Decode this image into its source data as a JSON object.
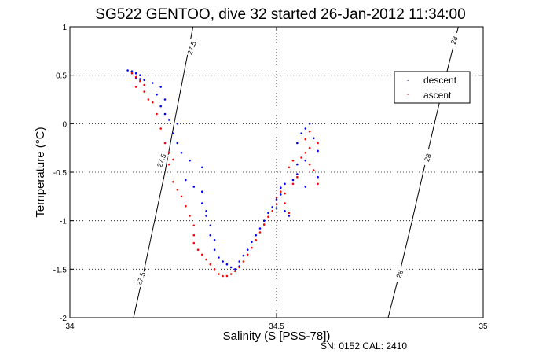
{
  "chart_data": {
    "type": "scatter",
    "title": "SG522 GENTOO, dive 32 started 26-Jan-2012 11:34:00",
    "xlabel": "Salinity (S [PSS-78])",
    "ylabel": "Temperature (°C)",
    "xlim": [
      34,
      35
    ],
    "ylim": [
      -2,
      1
    ],
    "xticks": [
      34,
      34.5,
      35
    ],
    "xtick_labels": [
      "34",
      "34.5",
      "35"
    ],
    "yticks": [
      -2,
      -1.5,
      -1,
      -0.5,
      0,
      0.5,
      1
    ],
    "ytick_labels": [
      "-2",
      "-1.5",
      "-1",
      "-0.5",
      "0",
      "0.5",
      "1"
    ],
    "grid": true,
    "legend_position": "top-right",
    "series": [
      {
        "name": "descent",
        "color": "#0000ff",
        "points": [
          [
            34.14,
            0.55
          ],
          [
            34.15,
            0.54
          ],
          [
            34.16,
            0.52
          ],
          [
            34.17,
            0.5
          ],
          [
            34.16,
            0.47
          ],
          [
            34.17,
            0.46
          ],
          [
            34.18,
            0.45
          ],
          [
            34.2,
            0.42
          ],
          [
            34.22,
            0.38
          ],
          [
            34.21,
            0.3
          ],
          [
            34.23,
            0.25
          ],
          [
            34.22,
            0.18
          ],
          [
            34.23,
            0.1
          ],
          [
            34.24,
            0.04
          ],
          [
            34.26,
            0.0
          ],
          [
            34.25,
            -0.1
          ],
          [
            34.26,
            -0.2
          ],
          [
            34.27,
            -0.3
          ],
          [
            34.29,
            -0.38
          ],
          [
            34.32,
            -0.45
          ],
          [
            34.28,
            -0.58
          ],
          [
            34.3,
            -0.65
          ],
          [
            34.32,
            -0.7
          ],
          [
            34.32,
            -0.82
          ],
          [
            34.33,
            -0.9
          ],
          [
            34.33,
            -0.95
          ],
          [
            34.34,
            -1.05
          ],
          [
            34.34,
            -1.15
          ],
          [
            34.35,
            -1.2
          ],
          [
            34.35,
            -1.3
          ],
          [
            34.36,
            -1.38
          ],
          [
            34.37,
            -1.42
          ],
          [
            34.38,
            -1.45
          ],
          [
            34.39,
            -1.48
          ],
          [
            34.4,
            -1.5
          ],
          [
            34.41,
            -1.47
          ],
          [
            34.41,
            -1.42
          ],
          [
            34.42,
            -1.36
          ],
          [
            34.43,
            -1.3
          ],
          [
            34.44,
            -1.22
          ],
          [
            34.45,
            -1.15
          ],
          [
            34.46,
            -1.08
          ],
          [
            34.47,
            -1.0
          ],
          [
            34.48,
            -0.92
          ],
          [
            34.49,
            -0.86
          ],
          [
            34.5,
            -0.78
          ],
          [
            34.51,
            -0.73
          ],
          [
            34.51,
            -0.66
          ],
          [
            34.52,
            -0.62
          ],
          [
            34.5,
            -0.87
          ],
          [
            34.52,
            -0.9
          ],
          [
            34.53,
            -0.95
          ],
          [
            34.54,
            -0.58
          ],
          [
            34.55,
            -0.52
          ],
          [
            34.55,
            -0.42
          ],
          [
            34.57,
            -0.38
          ],
          [
            34.55,
            -0.2
          ],
          [
            34.56,
            -0.1
          ],
          [
            34.57,
            -0.05
          ],
          [
            34.58,
            0.0
          ],
          [
            34.59,
            -0.15
          ],
          [
            34.6,
            -0.28
          ],
          [
            34.57,
            -0.65
          ],
          [
            34.6,
            -0.55
          ]
        ]
      },
      {
        "name": "ascent",
        "color": "#ff0000",
        "points": [
          [
            34.15,
            0.52
          ],
          [
            34.16,
            0.48
          ],
          [
            34.17,
            0.44
          ],
          [
            34.18,
            0.4
          ],
          [
            34.16,
            0.38
          ],
          [
            34.18,
            0.33
          ],
          [
            34.19,
            0.25
          ],
          [
            34.2,
            0.22
          ],
          [
            34.21,
            0.1
          ],
          [
            34.22,
            -0.05
          ],
          [
            34.23,
            -0.2
          ],
          [
            34.24,
            -0.3
          ],
          [
            34.25,
            -0.37
          ],
          [
            34.24,
            -0.42
          ],
          [
            34.25,
            -0.6
          ],
          [
            34.26,
            -0.68
          ],
          [
            34.27,
            -0.75
          ],
          [
            34.28,
            -0.85
          ],
          [
            34.29,
            -0.95
          ],
          [
            34.3,
            -1.05
          ],
          [
            34.3,
            -1.15
          ],
          [
            34.3,
            -1.23
          ],
          [
            34.31,
            -1.3
          ],
          [
            34.32,
            -1.35
          ],
          [
            34.33,
            -1.4
          ],
          [
            34.34,
            -1.45
          ],
          [
            34.35,
            -1.5
          ],
          [
            34.36,
            -1.55
          ],
          [
            34.37,
            -1.57
          ],
          [
            34.38,
            -1.57
          ],
          [
            34.39,
            -1.55
          ],
          [
            34.4,
            -1.52
          ],
          [
            34.41,
            -1.48
          ],
          [
            34.42,
            -1.42
          ],
          [
            34.43,
            -1.35
          ],
          [
            34.44,
            -1.28
          ],
          [
            34.45,
            -1.2
          ],
          [
            34.46,
            -1.12
          ],
          [
            34.47,
            -1.04
          ],
          [
            34.48,
            -0.96
          ],
          [
            34.49,
            -0.9
          ],
          [
            34.5,
            -0.83
          ],
          [
            34.5,
            -0.76
          ],
          [
            34.51,
            -0.7
          ],
          [
            34.52,
            -0.72
          ],
          [
            34.52,
            -0.82
          ],
          [
            34.53,
            -0.92
          ],
          [
            34.54,
            -0.62
          ],
          [
            34.55,
            -0.55
          ],
          [
            34.53,
            -0.45
          ],
          [
            34.54,
            -0.38
          ],
          [
            34.56,
            -0.35
          ],
          [
            34.57,
            -0.3
          ],
          [
            34.58,
            -0.42
          ],
          [
            34.59,
            -0.48
          ],
          [
            34.58,
            -0.25
          ],
          [
            34.57,
            -0.16
          ],
          [
            34.58,
            -0.08
          ],
          [
            34.6,
            -0.2
          ],
          [
            34.6,
            -0.62
          ]
        ]
      }
    ],
    "contours": [
      {
        "label": "27.5",
        "points": [
          [
            34.154,
            -2
          ],
          [
            34.18,
            -1.5
          ],
          [
            34.205,
            -1.0
          ],
          [
            34.23,
            -0.5
          ],
          [
            34.252,
            0
          ],
          [
            34.275,
            0.5
          ],
          [
            34.298,
            1.0
          ]
        ]
      },
      {
        "label": "28",
        "points": [
          [
            34.77,
            -2
          ],
          [
            34.8,
            -1.5
          ],
          [
            34.828,
            -1.0
          ],
          [
            34.855,
            -0.5
          ],
          [
            34.882,
            0
          ],
          [
            34.91,
            0.5
          ],
          [
            34.94,
            1.0
          ]
        ]
      }
    ],
    "contour_labels": [
      {
        "text": "27.5",
        "x": 34.295,
        "y": 0.78
      },
      {
        "text": "27.5",
        "x": 34.222,
        "y": -0.38
      },
      {
        "text": "27.5",
        "x": 34.172,
        "y": -1.6
      },
      {
        "text": "28",
        "x": 34.93,
        "y": 0.86
      },
      {
        "text": "28",
        "x": 34.866,
        "y": -0.35
      },
      {
        "text": "28",
        "x": 34.798,
        "y": -1.55
      }
    ],
    "footer": "SN: 0152  CAL: 2410"
  }
}
